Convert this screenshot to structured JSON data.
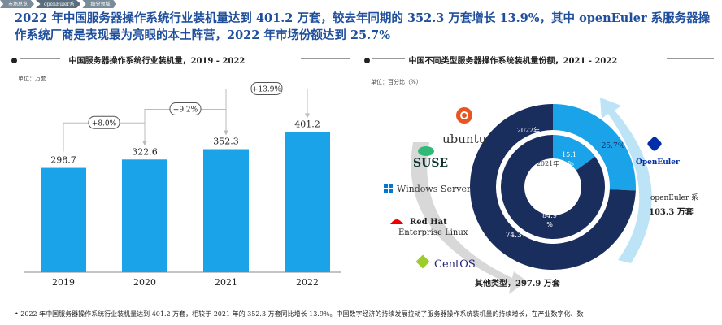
{
  "breadcrumbs": [
    "市场总览",
    "openEuler系",
    "细分领域"
  ],
  "headline": "2022 年中国服务器操作系统行业装机量达到 401.2 万套，较去年同期的 352.3 万套增长 13.9%，其中 openEuler 系服务器操作系统厂商是表现最为亮眼的本土阵营，2022 年市场份额达到 25.7%",
  "left_panel": {
    "title": "中国服务器操作系统行业装机量，2019 - 2022",
    "unit": "单位：万套"
  },
  "right_panel": {
    "title": "中国不同类型服务器操作系统装机量份额，2021 - 2022",
    "unit": "单位：百分比（%）"
  },
  "chart_data": [
    {
      "type": "bar",
      "title": "中国服务器操作系统行业装机量，2019 - 2022",
      "categories": [
        "2019",
        "2020",
        "2021",
        "2022"
      ],
      "values": [
        298.7,
        322.6,
        352.3,
        401.2
      ],
      "value_labels": [
        "298.7",
        "322.6",
        "352.3",
        "401.2"
      ],
      "growth_labels": [
        "+8.0%",
        "+9.2%",
        "+13.9%"
      ],
      "color": "#1aa3e8"
    },
    {
      "type": "pie",
      "title": "中国不同类型服务器操作系统装机量份额，2021 - 2022",
      "rings": [
        {
          "year": "2022年",
          "slices": [
            {
              "label": "25.7%",
              "value": 25.7,
              "color": "#1aa3e8"
            },
            {
              "label": "74.3%",
              "value": 74.3,
              "color": "#1a2e5e"
            }
          ]
        },
        {
          "year": "2021年",
          "slices": [
            {
              "label": "15.1%",
              "value": 15.1,
              "color": "#1aa3e8"
            },
            {
              "label": "84.9%",
              "value": 84.9,
              "color": "#1a2e5e"
            }
          ]
        }
      ],
      "inner_labels": {
        "r2021_small": "15.1 %",
        "r2021_large": "84.9 %"
      },
      "annotations": {
        "openeuler_label": "openEuler 系",
        "openeuler_value": "103.3 万套",
        "other_label": "其他类型，297.9 万套"
      }
    }
  ],
  "logos": {
    "ubuntu": "ubuntu",
    "suse": "SUSE",
    "windows": "Windows Server",
    "redhat_1": "Red Hat",
    "redhat_2": "Enterprise Linux",
    "centos": "CentOS",
    "openeuler": "OpenEuler"
  },
  "footer_text": "2022 年中国服务器操作系统行业装机量达到 401.2 万套，相较于 2021 年的 352.3 万套同比增长 13.9%。中国数字经济的持续发展拉动了服务器操作系统装机量的持续增长，在产业数字化、数"
}
